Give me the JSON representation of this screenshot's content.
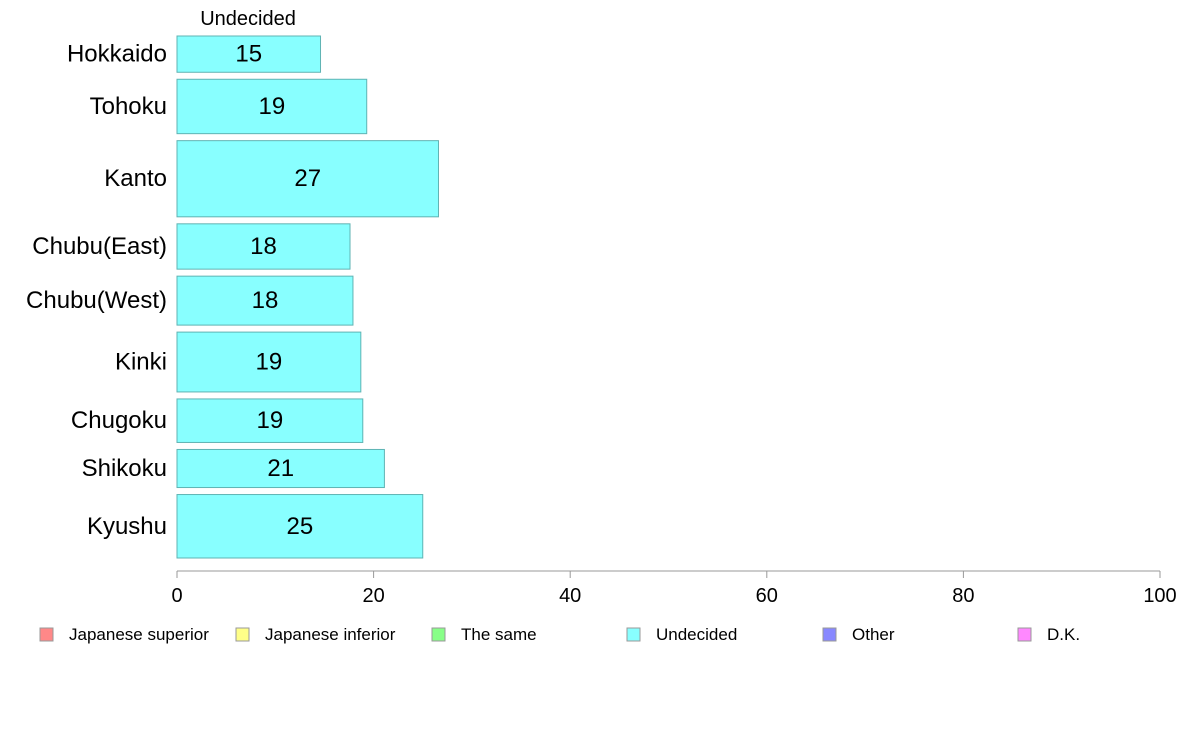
{
  "chart_data": {
    "type": "bar",
    "orientation": "horizontal",
    "series_title": "Undecided",
    "categories": [
      "Hokkaido",
      "Tohoku",
      "Kanto",
      "Chubu(East)",
      "Chubu(West)",
      "Kinki",
      "Chugoku",
      "Shikoku",
      "Kyushu"
    ],
    "values": [
      14.6,
      19.3,
      26.6,
      17.6,
      17.9,
      18.7,
      18.9,
      21.1,
      25.0
    ],
    "value_labels": [
      "15",
      "19",
      "27",
      "18",
      "18",
      "19",
      "19",
      "21",
      "25"
    ],
    "category_weights": [
      1.0,
      1.5,
      2.1,
      1.25,
      1.35,
      1.65,
      1.2,
      1.05,
      1.75
    ],
    "xlim": [
      0,
      100
    ],
    "x_ticks": [
      0,
      20,
      40,
      60,
      80,
      100
    ],
    "x_tick_labels": [
      "0",
      "20",
      "40",
      "60",
      "80",
      "100"
    ],
    "bar_color": "#88ffff",
    "bar_stroke": "#5fb3b3",
    "axis_color": "#999999",
    "grid": false,
    "legend_position": "bottom",
    "legend": [
      {
        "label": "Japanese superior",
        "color": "#ff8888"
      },
      {
        "label": "Japanese inferior",
        "color": "#ffff88"
      },
      {
        "label": "The same",
        "color": "#88ff88"
      },
      {
        "label": "Undecided",
        "color": "#88ffff"
      },
      {
        "label": "Other",
        "color": "#8888ff"
      },
      {
        "label": "D.K.",
        "color": "#ff88ff"
      }
    ]
  }
}
